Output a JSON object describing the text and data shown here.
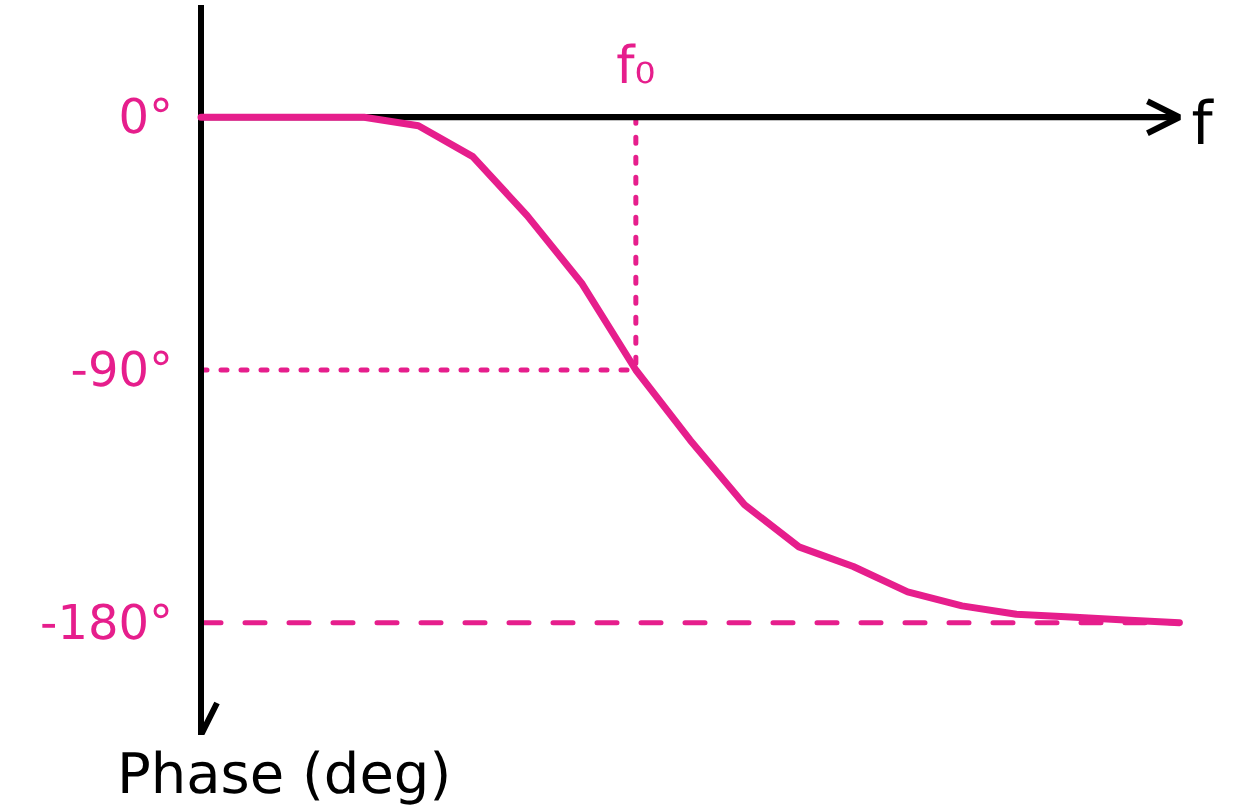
{
  "chart_data": {
    "type": "line",
    "xlabel": "f",
    "ylabel": "Phase (deg)",
    "categories": [
      null,
      null,
      null,
      null,
      null,
      null,
      null,
      null,
      null,
      null,
      null,
      null,
      null,
      null,
      null,
      null,
      null,
      null,
      null
    ],
    "series": [
      {
        "color": "#e61e8c",
        "values": [
          0,
          0,
          0,
          0,
          -3,
          -14,
          -35,
          -59,
          -90,
          -115,
          -138,
          -153,
          -160,
          -169,
          -174,
          -177,
          -178,
          -179,
          -180
        ]
      }
    ],
    "ylim": [
      -220,
      40
    ],
    "yticks": [
      {
        "value": 0,
        "label": "0°"
      },
      {
        "value": -90,
        "label": "-90°"
      },
      {
        "value": -180,
        "label": "-180°"
      }
    ],
    "annotations": [
      {
        "text": "f₀",
        "y": -90
      }
    ],
    "ref_lines": [
      {
        "axis": "y",
        "value": -90,
        "line_style": "dotted",
        "color": "#e61e8c"
      },
      {
        "axis": "y",
        "value": -180,
        "line_style": "dashed",
        "color": "#e61e8c"
      }
    ],
    "line_style": "solid"
  }
}
